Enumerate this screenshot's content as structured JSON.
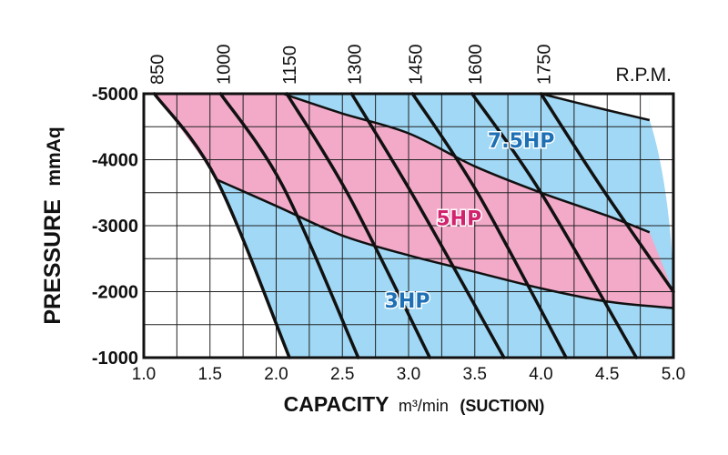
{
  "chart_data": {
    "type": "line",
    "xlabel": "CAPACITY",
    "xlabel_unit": "m³/min",
    "xlabel_suffix": "(SUCTION)",
    "ylabel": "PRESSURE",
    "ylabel_unit": "mmAq",
    "top_axis_label": "R.P.M.",
    "xlim": [
      1.0,
      5.0
    ],
    "ylim": [
      -1000,
      -5000
    ],
    "x_ticks": [
      "1.0",
      "1.5",
      "2.0",
      "2.5",
      "3.0",
      "3.5",
      "4.0",
      "4.5",
      "5.0"
    ],
    "y_ticks": [
      "-5000",
      "-4000",
      "-3000",
      "-2000",
      "-1000"
    ],
    "grid": true,
    "rpm_curves": [
      {
        "name": "850",
        "points": [
          [
            1.08,
            -5000
          ],
          [
            1.55,
            -3700
          ],
          [
            2.1,
            -1000
          ]
        ]
      },
      {
        "name": "1000",
        "points": [
          [
            1.58,
            -5000
          ],
          [
            2.05,
            -3600
          ],
          [
            2.62,
            -1000
          ]
        ]
      },
      {
        "name": "1150",
        "points": [
          [
            2.08,
            -5000
          ],
          [
            2.55,
            -3450
          ],
          [
            3.16,
            -1000
          ]
        ]
      },
      {
        "name": "1300",
        "points": [
          [
            2.57,
            -5000
          ],
          [
            3.05,
            -3400
          ],
          [
            3.72,
            -1000
          ]
        ]
      },
      {
        "name": "1450",
        "points": [
          [
            3.03,
            -5000
          ],
          [
            3.52,
            -3500
          ],
          [
            4.19,
            -1000
          ]
        ]
      },
      {
        "name": "1600",
        "points": [
          [
            3.48,
            -5000
          ],
          [
            4.0,
            -3500
          ],
          [
            4.72,
            -1000
          ]
        ]
      },
      {
        "name": "1750",
        "points": [
          [
            4.0,
            -5000
          ],
          [
            4.45,
            -3600
          ],
          [
            5.0,
            -2000
          ]
        ]
      }
    ],
    "power_boundaries": [
      {
        "name": "3HP",
        "points": [
          [
            1.55,
            -3700
          ],
          [
            2.0,
            -3300
          ],
          [
            2.5,
            -2850
          ],
          [
            3.0,
            -2550
          ],
          [
            3.5,
            -2300
          ],
          [
            4.0,
            -2050
          ],
          [
            4.5,
            -1850
          ],
          [
            5.0,
            -1750
          ]
        ]
      },
      {
        "name": "5HP",
        "points": [
          [
            2.05,
            -5000
          ],
          [
            2.5,
            -4700
          ],
          [
            3.0,
            -4400
          ],
          [
            3.5,
            -3900
          ],
          [
            4.0,
            -3500
          ],
          [
            4.5,
            -3150
          ],
          [
            4.82,
            -2900
          ]
        ]
      },
      {
        "name": "7.5HP",
        "points": [
          [
            4.0,
            -5000
          ],
          [
            4.4,
            -4800
          ],
          [
            4.82,
            -4600
          ]
        ]
      }
    ],
    "region_labels": [
      {
        "text": "7.5HP",
        "color": "#1e6fb4",
        "x": 3.85,
        "y": -4300
      },
      {
        "text": "5HP",
        "color": "#d2236f",
        "x": 3.38,
        "y": -3120
      },
      {
        "text": "3HP",
        "color": "#1e6fb4",
        "x": 2.99,
        "y": -1870
      }
    ],
    "colors": {
      "blue_region": "#a0d8f5",
      "pink_region": "#f3aac9",
      "curve": "#111111",
      "grid": "#222222"
    }
  }
}
